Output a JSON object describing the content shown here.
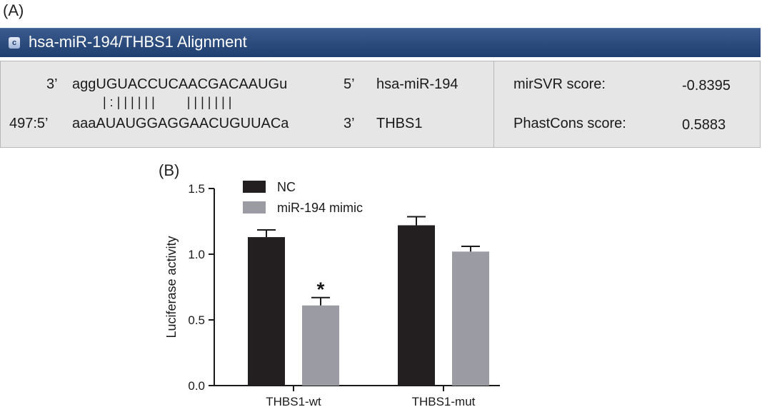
{
  "panel_a": {
    "label": "(A)",
    "header": {
      "icon": "c-icon",
      "icon_letter": "c",
      "title": "hsa-miR-194/THBS1 Alignment"
    },
    "mirna_row": {
      "end3": "3’",
      "sequence": "aggUGUACCUCAACGACAAUGu",
      "end5": "5’",
      "name": "hsa-miR-194"
    },
    "pairing": "| : | | | | | |         | | | | | | |",
    "target_row": {
      "position": "497:5’",
      "sequence": "aaaAUAUGGAGGAACUGUUACa",
      "end3": "3’",
      "name": "THBS1"
    },
    "scores": [
      {
        "label": "mirSVR score:",
        "value": "-0.8395"
      },
      {
        "label": "PhastCons score:",
        "value": "0.5883"
      }
    ]
  },
  "panel_b": {
    "label": "(B)"
  },
  "chart_data": {
    "type": "bar",
    "categories": [
      "THBS1-wt",
      "THBS1-mut"
    ],
    "series": [
      {
        "name": "NC",
        "values": [
          1.13,
          1.22
        ],
        "errors": [
          0.055,
          0.065
        ],
        "color": "#231f20"
      },
      {
        "name": "miR-194 mimic",
        "values": [
          0.61,
          1.02
        ],
        "errors": [
          0.06,
          0.04
        ],
        "color": "#9b9ca3"
      }
    ],
    "ylabel": "Luciferase activity",
    "xlabel": "",
    "ylim": [
      0,
      1.5
    ],
    "yticks": [
      "0.0",
      "0.5",
      "1.0",
      "1.5"
    ],
    "annotations": [
      {
        "text": "*",
        "category": "THBS1-wt",
        "series": "miR-194 mimic"
      }
    ],
    "legend_position": "top-left",
    "grid": false
  }
}
